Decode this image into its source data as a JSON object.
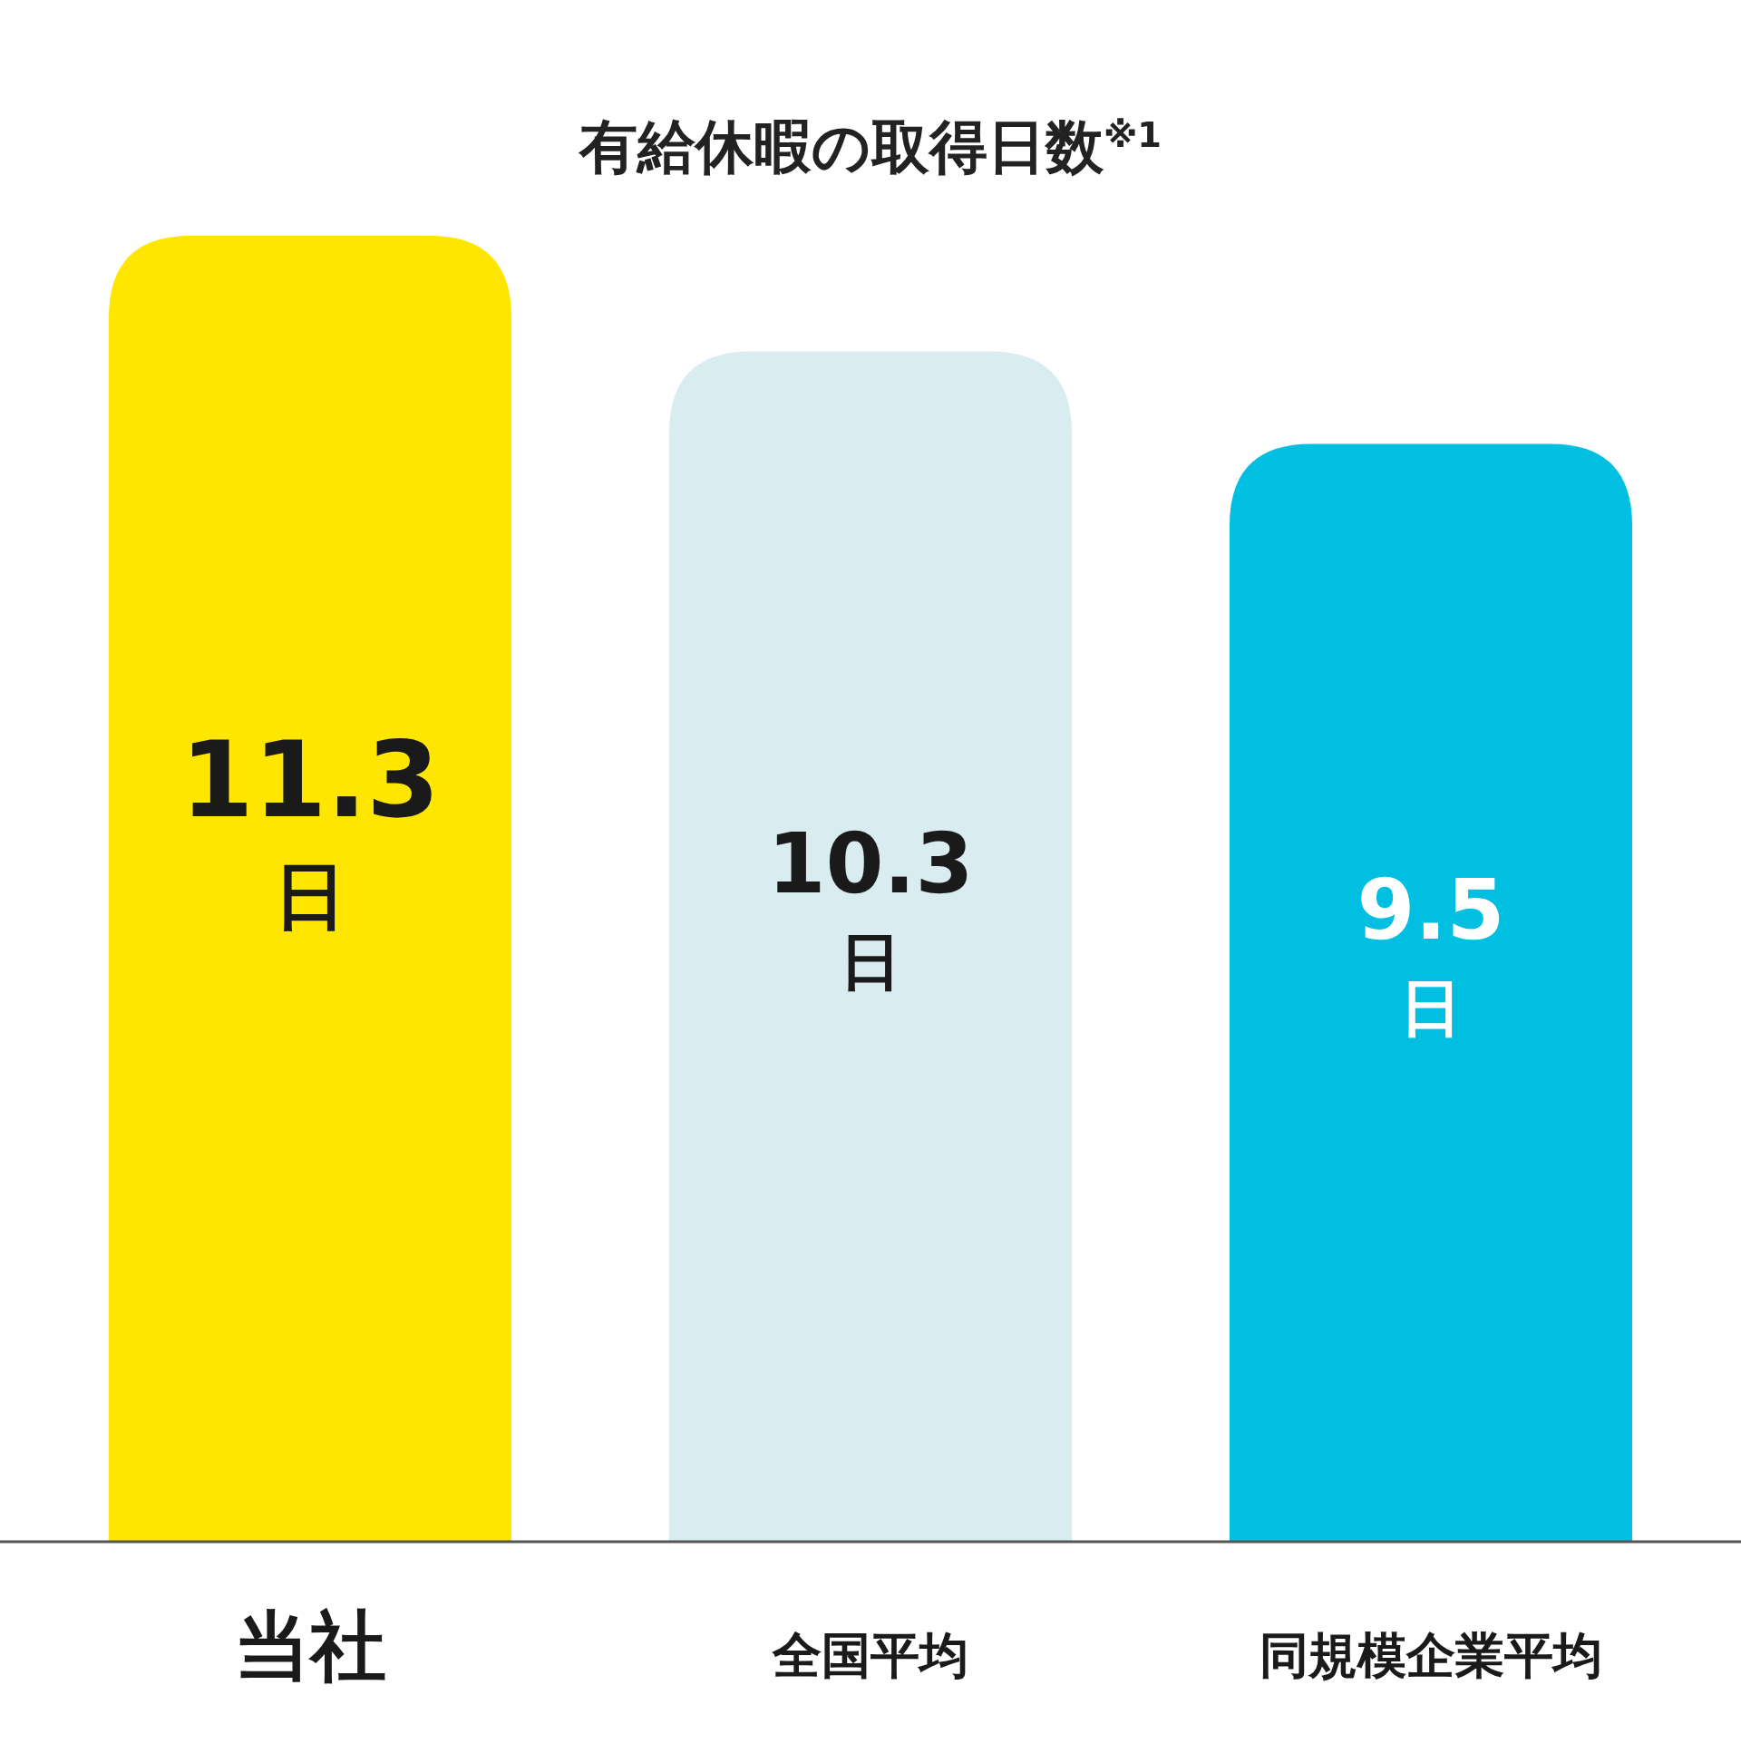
{
  "chart_data": {
    "type": "bar",
    "title": "有給休暇の取得日数$^{※1}$",
    "categories": [
      "当社",
      "全国平均",
      "同規模企業平均"
    ],
    "values": [
      11.3,
      10.3,
      9.5
    ],
    "colors": [
      "#ffe600",
      "#d9ecef",
      "#00bfe0"
    ],
    "value_labels": [
      "11.3\n日",
      "10.3\n日",
      "9.5\n日"
    ]
  }
}
